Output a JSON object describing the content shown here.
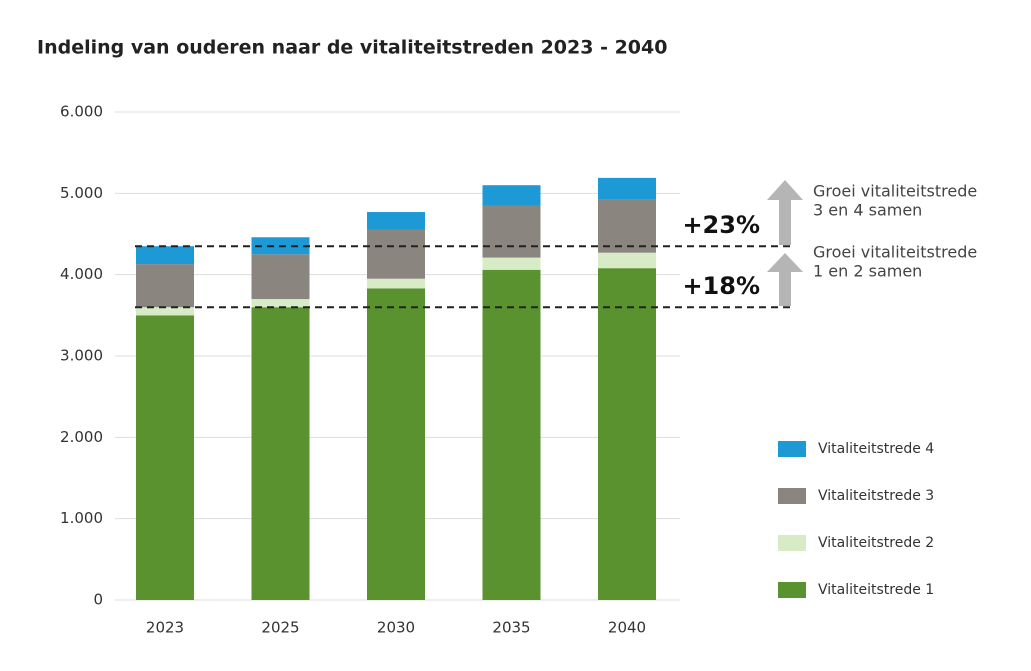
{
  "chart_data": {
    "type": "stacked_bar",
    "title": "Indeling van ouderen naar de vitaliteitstreden 2023 - 2040",
    "categories": [
      "2023",
      "2025",
      "2030",
      "2035",
      "2040"
    ],
    "series": [
      {
        "name": "Vitaliteitstrede 1",
        "color": "#5a9230",
        "values": [
          3500,
          3600,
          3830,
          4060,
          4080
        ]
      },
      {
        "name": "Vitaliteitstrede 2",
        "color": "#d6ebc6",
        "values": [
          100,
          100,
          120,
          150,
          190
        ]
      },
      {
        "name": "Vitaliteitstrede 3",
        "color": "#8b8580",
        "values": [
          530,
          550,
          600,
          640,
          660
        ]
      },
      {
        "name": "Vitaliteitstrede 4",
        "color": "#1d9ad6",
        "values": [
          220,
          210,
          220,
          250,
          260
        ]
      }
    ],
    "ylim": [
      0,
      6000
    ],
    "yticks": [
      0,
      {
        "value": 1000,
        "label": "1.000"
      },
      {
        "value": 2000,
        "label": "2.000"
      },
      {
        "value": 3000,
        "label": "3.000"
      },
      {
        "value": 4000,
        "label": "4.000"
      },
      {
        "value": 5000,
        "label": "5.000"
      },
      {
        "value": 6000,
        "label": "6.000"
      }
    ],
    "grid": true,
    "reference_lines": [
      4350,
      3600
    ],
    "annotations": [
      {
        "label": "+23%",
        "text": [
          "Groei vitaliteitstrede",
          "3 en 4 samen"
        ]
      },
      {
        "label": "+18%",
        "text": [
          "Groei vitaliteitstrede",
          "1 en 2 samen"
        ]
      }
    ],
    "legend": "right"
  }
}
